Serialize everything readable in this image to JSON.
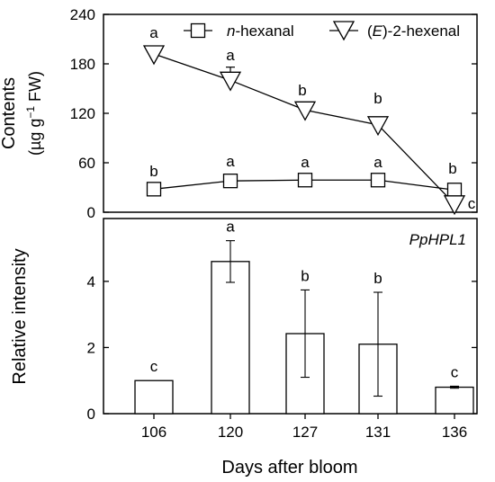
{
  "chart_data": [
    {
      "type": "line",
      "panel": "top",
      "ylabel_line1": "Contents",
      "ylabel_line2_prefix": "(µg g",
      "ylabel_line2_sup": "−1",
      "ylabel_line2_suffix": " FW)",
      "ylim": [
        0,
        240
      ],
      "yticks": [
        "0",
        "60",
        "120",
        "180",
        "240"
      ],
      "x": [
        "106",
        "120",
        "127",
        "131",
        "136"
      ],
      "legend_position": "top-right",
      "series": [
        {
          "name_italic": "n",
          "name_rest": "-hexanal",
          "marker": "square",
          "values": [
            28,
            38,
            39,
            39,
            27
          ],
          "errors": [
            6,
            4,
            3,
            4,
            7
          ],
          "letters": [
            "b",
            "a",
            "a",
            "a",
            "b"
          ]
        },
        {
          "name_open": "(",
          "name_italic": "E",
          "name_rest": ")-2-hexenal",
          "marker": "triangle-down",
          "values": [
            192,
            160,
            124,
            106,
            10
          ],
          "errors": [
            6,
            16,
            5,
            4,
            3
          ],
          "letters": [
            "a",
            "a",
            "b",
            "b",
            "c"
          ]
        }
      ]
    },
    {
      "type": "bar",
      "panel": "bottom",
      "title": "PpHPL1",
      "ylabel": "Relative intensity",
      "xlabel": "Days after bloom",
      "ylim": [
        0,
        5.9
      ],
      "yticks": [
        "0",
        "2",
        "4"
      ],
      "categories": [
        "106",
        "120",
        "127",
        "131",
        "136"
      ],
      "values": [
        1.0,
        4.6,
        2.42,
        2.1,
        0.8
      ],
      "errors": [
        0.0,
        0.63,
        1.32,
        1.57,
        0.03
      ],
      "letters": [
        "c",
        "a",
        "b",
        "b",
        "c"
      ]
    }
  ]
}
